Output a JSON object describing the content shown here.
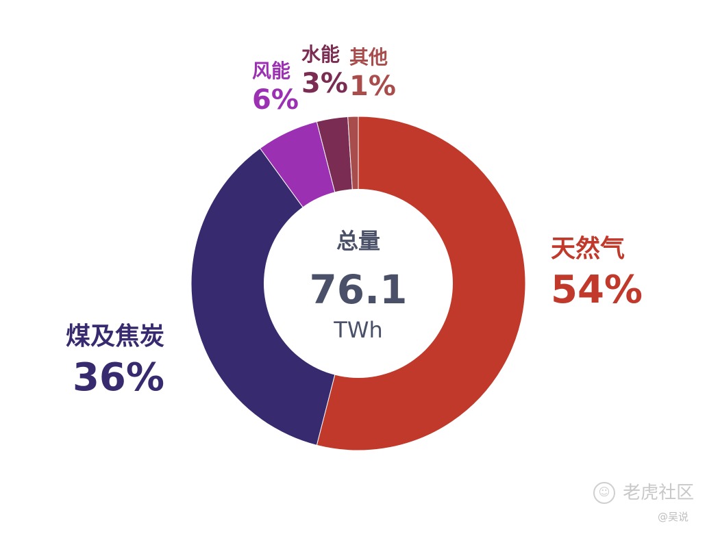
{
  "chart_data": {
    "type": "pie",
    "variant": "donut",
    "center": {
      "title": "总量",
      "value": "76.1",
      "unit": "TWh"
    },
    "slices": [
      {
        "label": "天然气",
        "value": 54,
        "display": "54%",
        "color": "#c0392b"
      },
      {
        "label": "煤及焦炭",
        "value": 36,
        "display": "36%",
        "color": "#382a6e"
      },
      {
        "label": "风能",
        "value": 6,
        "display": "6%",
        "color": "#9b30b3"
      },
      {
        "label": "水能",
        "value": 3,
        "display": "3%",
        "color": "#7b2c52"
      },
      {
        "label": "其他",
        "value": 1,
        "display": "1%",
        "color": "#a84c4c"
      }
    ]
  },
  "watermark": {
    "brand": "老虎社区",
    "author": "@吴说"
  }
}
